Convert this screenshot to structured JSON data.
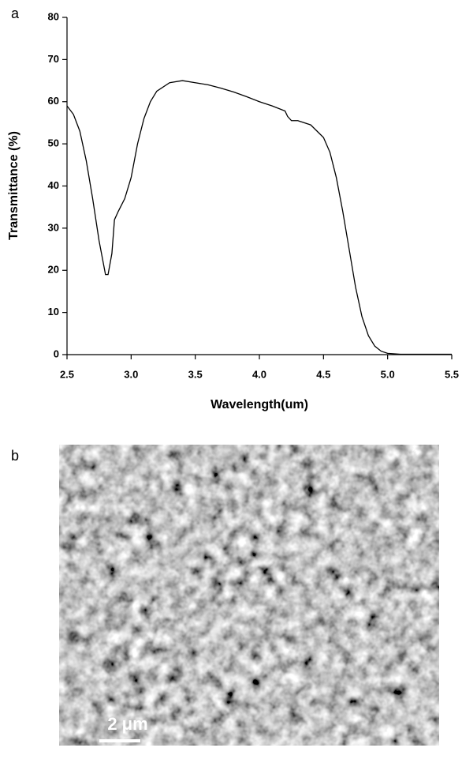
{
  "panel_labels": [
    "a",
    "b"
  ],
  "chart_data": {
    "type": "line",
    "ylabel": "Transmittance (%)",
    "xlabel": "Wavelength(um)",
    "color": "#000000",
    "x": [
      2.5,
      2.55,
      2.6,
      2.65,
      2.7,
      2.75,
      2.8,
      2.82,
      2.85,
      2.87,
      2.9,
      2.95,
      3.0,
      3.05,
      3.1,
      3.15,
      3.2,
      3.3,
      3.4,
      3.5,
      3.6,
      3.7,
      3.8,
      3.9,
      4.0,
      4.1,
      4.2,
      4.22,
      4.25,
      4.3,
      4.4,
      4.5,
      4.55,
      4.6,
      4.65,
      4.7,
      4.75,
      4.8,
      4.85,
      4.9,
      4.95,
      5.0,
      5.1,
      5.5
    ],
    "values": [
      59,
      57,
      53,
      46,
      37,
      27,
      19,
      19,
      24,
      32,
      34,
      37,
      42,
      50,
      56,
      60,
      62.5,
      64.5,
      65,
      64.5,
      64,
      63.2,
      62.3,
      61.2,
      60,
      59,
      57.8,
      56.5,
      55.5,
      55.5,
      54.5,
      51.5,
      48,
      42,
      34,
      25,
      16,
      9,
      4.5,
      2,
      0.8,
      0.3,
      0.1,
      0.1
    ],
    "xlim": [
      2.5,
      5.5
    ],
    "ylim": [
      0,
      80
    ],
    "xticks": [
      2.5,
      {
        "value": 3,
        "label": "3.0"
      },
      3.5,
      {
        "value": 4,
        "label": "4.0"
      },
      4.5,
      {
        "value": 5,
        "label": "5.0"
      },
      5.5
    ],
    "yticks": [
      0,
      10,
      20,
      30,
      40,
      50,
      60,
      70,
      80
    ]
  },
  "image": {
    "scale_bar_label": "2 μm"
  }
}
